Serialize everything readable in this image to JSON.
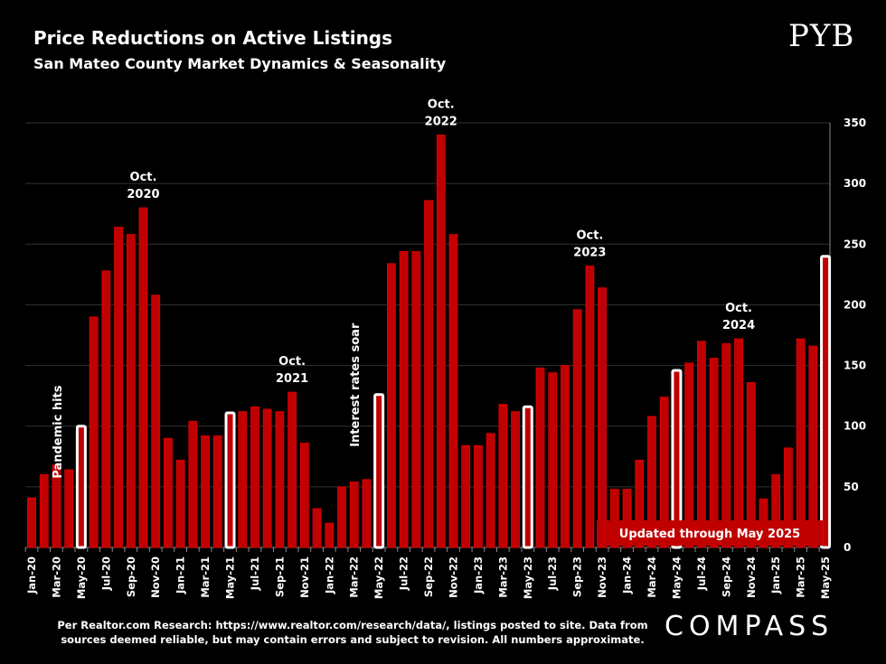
{
  "header": {
    "title": "Price Reductions on Active Listings",
    "subtitle": "San Mateo County Market Dynamics & Seasonality",
    "logo": "PYB"
  },
  "footer": {
    "note_line1": "Per Realtor.com Research:  https://www.realtor.com/research/data/, listings posted to site. Data from",
    "note_line2": "sources deemed reliable, but may contain errors and subject to revision. All numbers approximate.",
    "brand": "COMPASS"
  },
  "colors": {
    "bar": "#c00000",
    "highlight": "#ffffff",
    "background": "#000000"
  },
  "chart_data": {
    "type": "bar",
    "title": "Price Reductions on Active Listings",
    "ylim": [
      0,
      350
    ],
    "yticks": [
      0,
      50,
      100,
      150,
      200,
      250,
      300,
      350
    ],
    "y_axis_position": "right",
    "grid": true,
    "categories": [
      "Jan-20",
      "Feb-20",
      "Mar-20",
      "Apr-20",
      "May-20",
      "Jun-20",
      "Jul-20",
      "Aug-20",
      "Sep-20",
      "Oct-20",
      "Nov-20",
      "Dec-20",
      "Jan-21",
      "Feb-21",
      "Mar-21",
      "Apr-21",
      "May-21",
      "Jun-21",
      "Jul-21",
      "Aug-21",
      "Sep-21",
      "Oct-21",
      "Nov-21",
      "Dec-21",
      "Jan-22",
      "Feb-22",
      "Mar-22",
      "Apr-22",
      "May-22",
      "Jun-22",
      "Jul-22",
      "Aug-22",
      "Sep-22",
      "Oct-22",
      "Nov-22",
      "Dec-22",
      "Jan-23",
      "Feb-23",
      "Mar-23",
      "Apr-23",
      "May-23",
      "Jun-23",
      "Jul-23",
      "Aug-23",
      "Sep-23",
      "Oct-23",
      "Nov-23",
      "Dec-23",
      "Jan-24",
      "Feb-24",
      "Mar-24",
      "Apr-24",
      "May-24",
      "Jun-24",
      "Jul-24",
      "Aug-24",
      "Sep-24",
      "Oct-24",
      "Nov-24",
      "Dec-24",
      "Jan-25",
      "Feb-25",
      "Mar-25",
      "Apr-25",
      "May-25"
    ],
    "values": [
      41,
      60,
      68,
      64,
      100,
      190,
      228,
      264,
      258,
      280,
      208,
      90,
      72,
      104,
      92,
      92,
      111,
      112,
      116,
      114,
      112,
      128,
      86,
      32,
      20,
      50,
      54,
      56,
      126,
      234,
      244,
      244,
      286,
      340,
      258,
      84,
      84,
      94,
      118,
      112,
      116,
      148,
      144,
      150,
      196,
      232,
      214,
      48,
      48,
      72,
      108,
      124,
      146,
      152,
      170,
      156,
      168,
      172,
      136,
      40,
      60,
      82,
      172,
      166,
      240
    ],
    "highlighted": [
      "May-20",
      "May-21",
      "May-22",
      "May-23",
      "May-24",
      "May-25"
    ],
    "annotations": [
      {
        "at": "Oct-20",
        "text_line1": "Oct.",
        "text_line2": "2020"
      },
      {
        "at": "Oct-21",
        "text_line1": "Oct.",
        "text_line2": "2021"
      },
      {
        "at": "Oct-22",
        "text_line1": "Oct.",
        "text_line2": "2022"
      },
      {
        "at": "Oct-23",
        "text_line1": "Oct.",
        "text_line2": "2023"
      },
      {
        "at": "Oct-24",
        "text_line1": "Oct.",
        "text_line2": "2024"
      }
    ],
    "vertical_notes": [
      {
        "at": "May-20",
        "text": "Pandemic hits"
      },
      {
        "at": "May-22",
        "text": "Interest rates soar"
      }
    ],
    "update_badge": "Updated through May 2025"
  }
}
